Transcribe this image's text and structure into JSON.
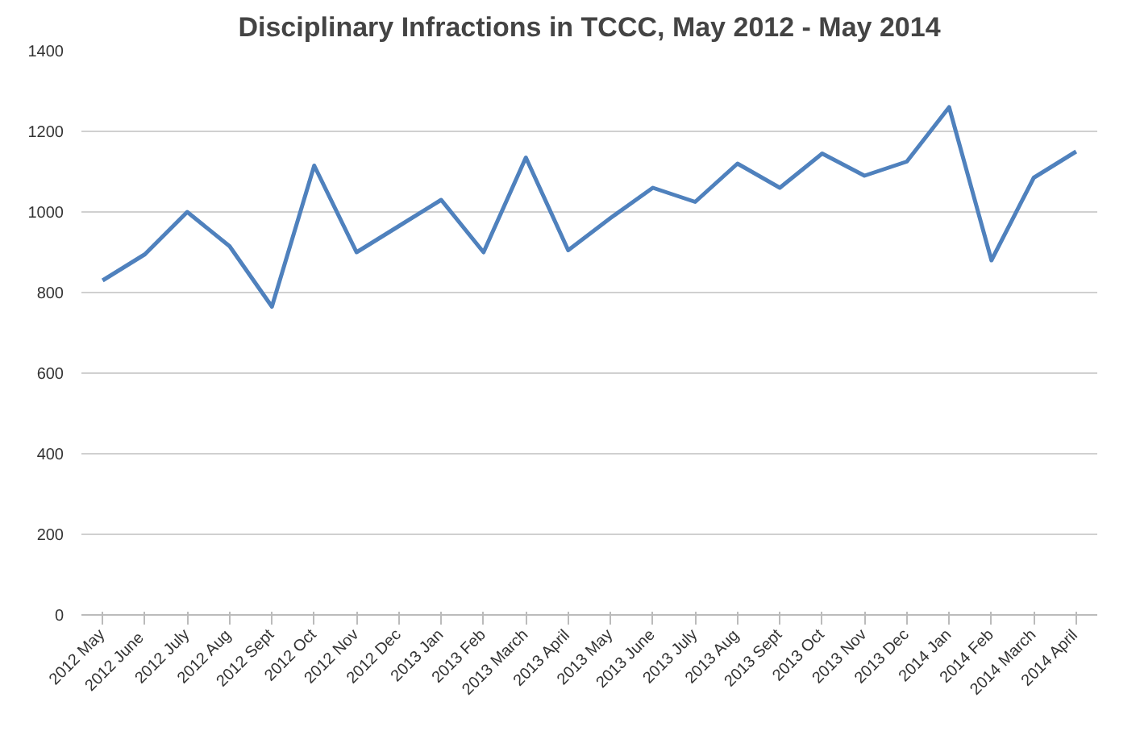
{
  "chart_data": {
    "type": "line",
    "title": "Disciplinary Infractions in TCCC, May 2012 - May 2014",
    "categories": [
      "2012 May",
      "2012  June",
      "2012 July",
      "2012 Aug",
      "2012 Sept",
      "2012 Oct",
      "2012 Nov",
      "2012 Dec",
      "2013 Jan",
      "2013 Feb",
      "2013 March",
      "2013 April",
      "2013 May",
      "2013 June",
      "2013 July",
      "2013 Aug",
      "2013 Sept",
      "2013 Oct",
      "2013 Nov",
      "2013 Dec",
      "2014 Jan",
      "2014 Feb",
      "2014 March",
      "2014 April"
    ],
    "series": [
      {
        "color": "#4f81bd",
        "values": [
          830,
          895,
          1000,
          915,
          765,
          1115,
          900,
          965,
          1030,
          900,
          1135,
          905,
          985,
          1060,
          1025,
          1120,
          1060,
          1145,
          1090,
          1125,
          1260,
          880,
          1085,
          1150
        ]
      }
    ],
    "ylim": [
      0,
      1400
    ],
    "yticks": [
      0,
      200,
      400,
      600,
      800,
      1000,
      1200,
      1400
    ],
    "grid": "y",
    "marker": "none",
    "line_style": "solid"
  }
}
